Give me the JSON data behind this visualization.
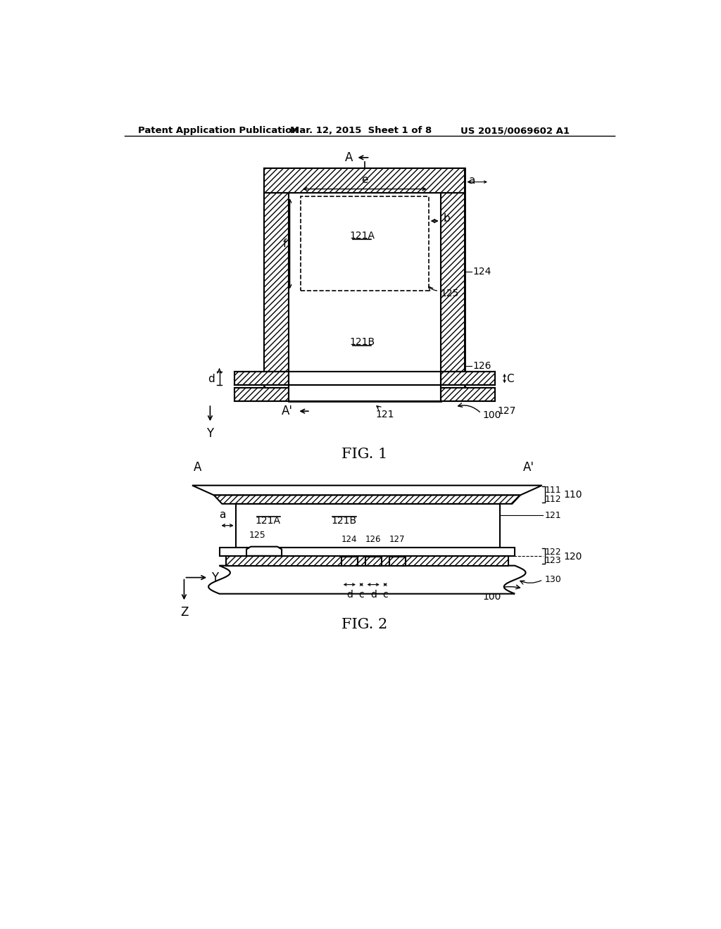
{
  "bg_color": "#ffffff",
  "header_left": "Patent Application Publication",
  "header_mid": "Mar. 12, 2015  Sheet 1 of 8",
  "header_right": "US 2015/0069602 A1",
  "fig1_label": "FIG. 1",
  "fig2_label": "FIG. 2"
}
